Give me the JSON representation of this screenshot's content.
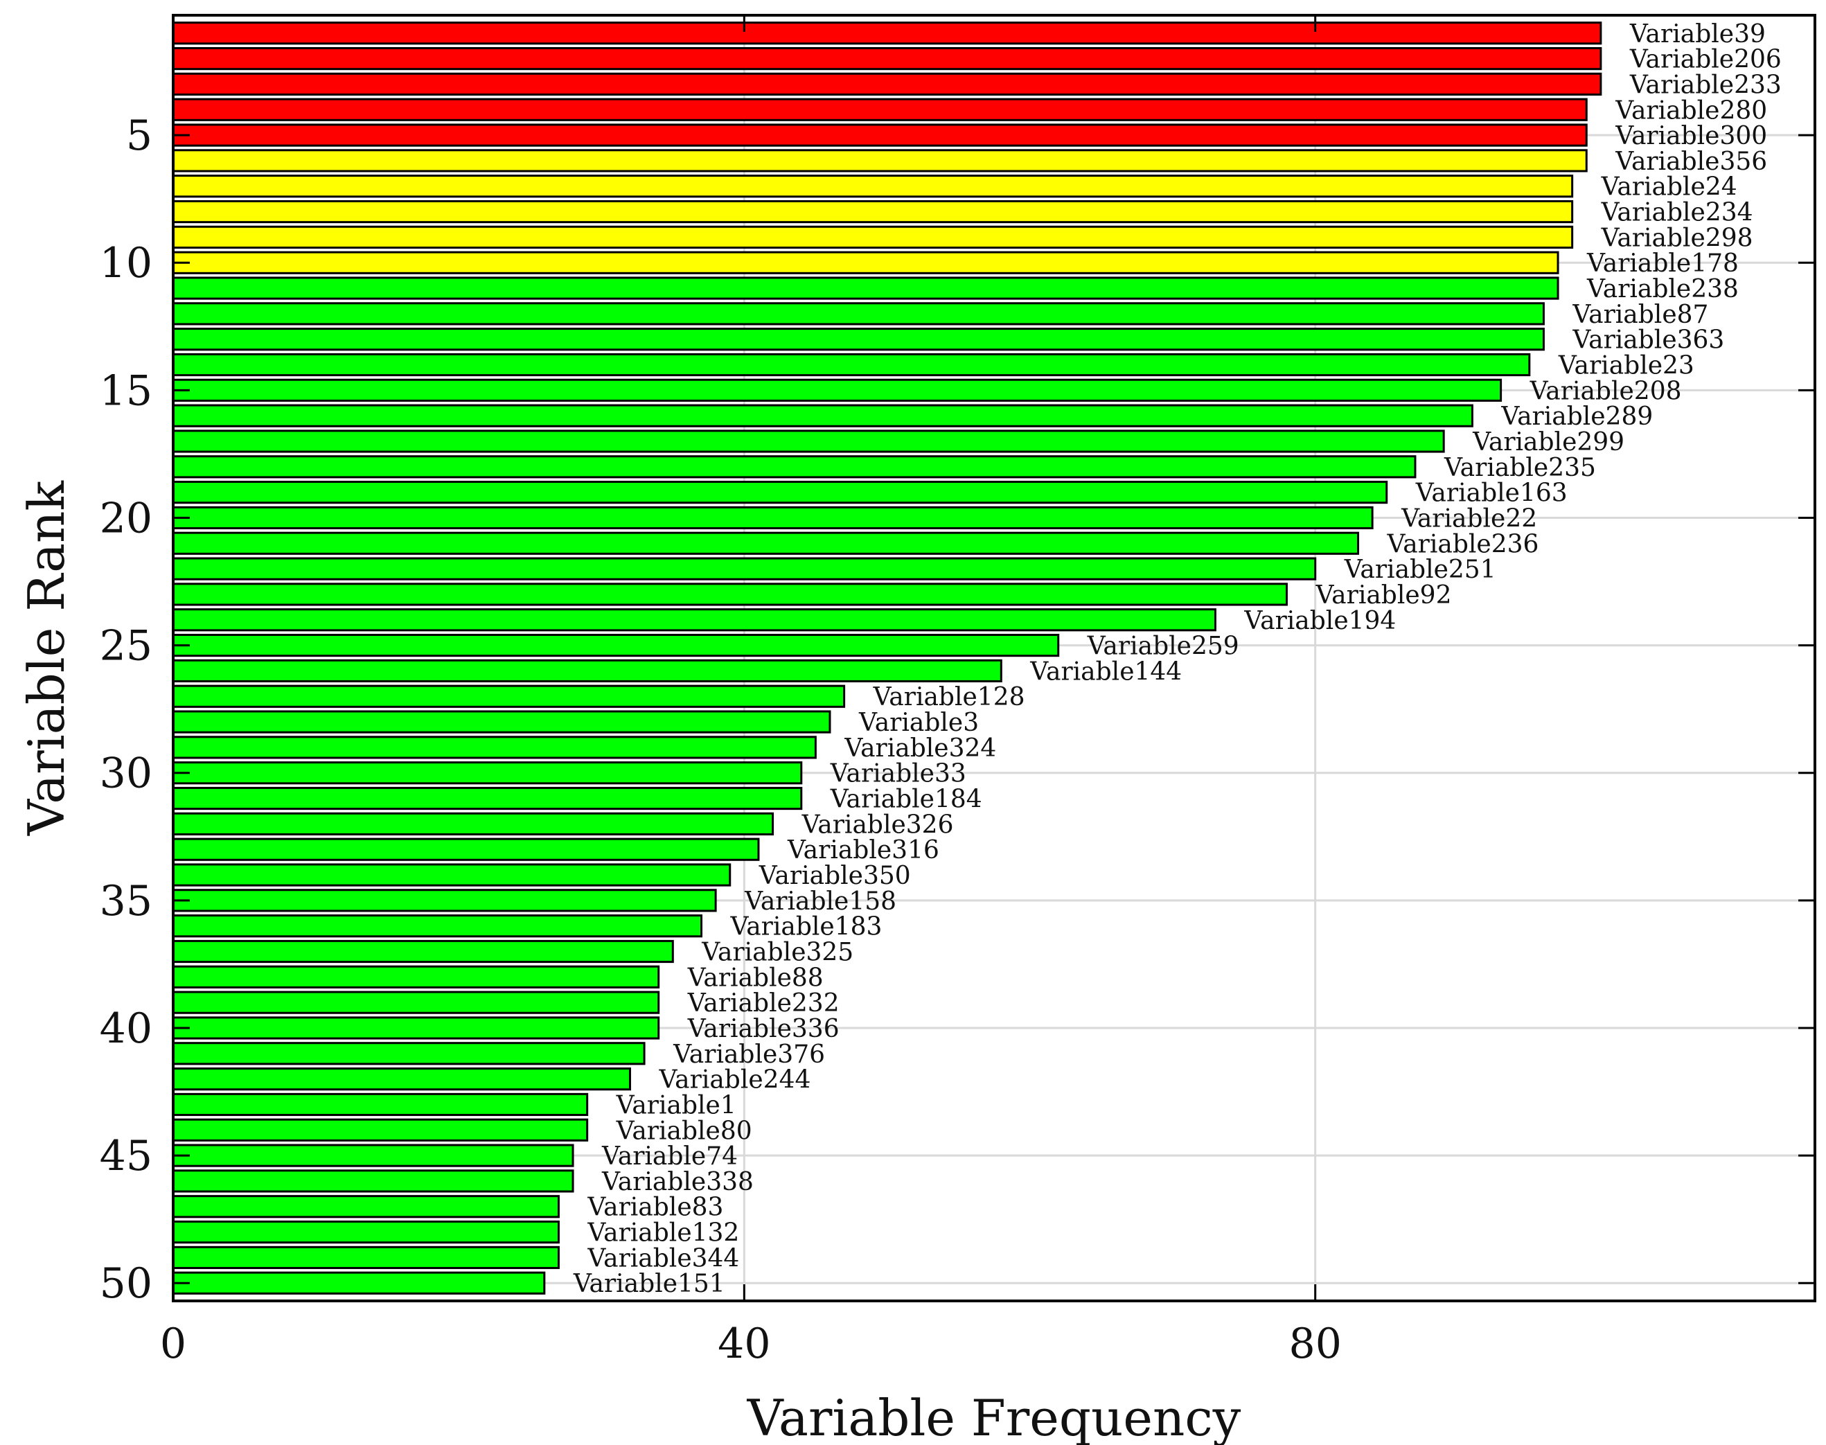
{
  "chart_data": {
    "type": "bar",
    "orientation": "horizontal",
    "title": "",
    "xlabel": "Variable Frequency",
    "ylabel": "Variable Rank",
    "xlim": [
      0,
      115
    ],
    "ylim": [
      0.3,
      50.7
    ],
    "x_ticks": [
      0,
      40,
      80
    ],
    "y_ticks": [
      5,
      10,
      15,
      20,
      25,
      30,
      35,
      40,
      45,
      50
    ],
    "grid": true,
    "colors": {
      "red": "#ff0000",
      "yellow": "#ffff00",
      "green": "#00ff00",
      "edge": "#000000",
      "grid": "#d9d9d9"
    },
    "series": [
      {
        "name": "Variable Frequency",
        "ranks": [
          1,
          2,
          3,
          4,
          5,
          6,
          7,
          8,
          9,
          10,
          11,
          12,
          13,
          14,
          15,
          16,
          17,
          18,
          19,
          20,
          21,
          22,
          23,
          24,
          25,
          26,
          27,
          28,
          29,
          30,
          31,
          32,
          33,
          34,
          35,
          36,
          37,
          38,
          39,
          40,
          41,
          42,
          43,
          44,
          45,
          46,
          47,
          48,
          49,
          50
        ],
        "categories": [
          "Variable39",
          "Variable206",
          "Variable233",
          "Variable280",
          "Variable300",
          "Variable356",
          "Variable24",
          "Variable234",
          "Variable298",
          "Variable178",
          "Variable238",
          "Variable87",
          "Variable363",
          "Variable23",
          "Variable208",
          "Variable289",
          "Variable299",
          "Variable235",
          "Variable163",
          "Variable22",
          "Variable236",
          "Variable251",
          "Variable92",
          "Variable194",
          "Variable259",
          "Variable144",
          "Variable128",
          "Variable3",
          "Variable324",
          "Variable33",
          "Variable184",
          "Variable326",
          "Variable316",
          "Variable350",
          "Variable158",
          "Variable183",
          "Variable325",
          "Variable88",
          "Variable232",
          "Variable336",
          "Variable376",
          "Variable244",
          "Variable1",
          "Variable80",
          "Variable74",
          "Variable338",
          "Variable83",
          "Variable132",
          "Variable344",
          "Variable151"
        ],
        "values": [
          100,
          100,
          100,
          99,
          99,
          99,
          98,
          98,
          98,
          97,
          97,
          96,
          96,
          95,
          93,
          91,
          89,
          87,
          85,
          84,
          83,
          80,
          78,
          73,
          62,
          58,
          47,
          46,
          45,
          44,
          44,
          42,
          41,
          39,
          38,
          37,
          35,
          34,
          34,
          34,
          33,
          32,
          29,
          29,
          28,
          28,
          27,
          27,
          27,
          26
        ],
        "color_groups": [
          "red",
          "red",
          "red",
          "red",
          "red",
          "yellow",
          "yellow",
          "yellow",
          "yellow",
          "yellow",
          "green",
          "green",
          "green",
          "green",
          "green",
          "green",
          "green",
          "green",
          "green",
          "green",
          "green",
          "green",
          "green",
          "green",
          "green",
          "green",
          "green",
          "green",
          "green",
          "green",
          "green",
          "green",
          "green",
          "green",
          "green",
          "green",
          "green",
          "green",
          "green",
          "green",
          "green",
          "green",
          "green",
          "green",
          "green",
          "green",
          "green",
          "green",
          "green",
          "green"
        ]
      }
    ]
  }
}
